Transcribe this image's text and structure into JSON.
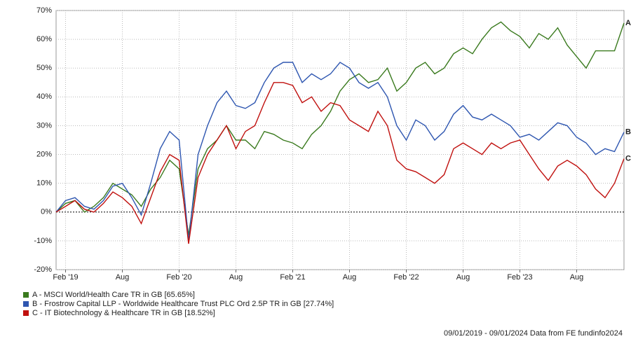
{
  "chart_data": {
    "type": "line",
    "x": [
      "2019-01",
      "2019-02",
      "2019-03",
      "2019-04",
      "2019-05",
      "2019-06",
      "2019-07",
      "2019-08",
      "2019-09",
      "2019-10",
      "2019-11",
      "2019-12",
      "2020-01",
      "2020-02",
      "2020-03",
      "2020-04",
      "2020-05",
      "2020-06",
      "2020-07",
      "2020-08",
      "2020-09",
      "2020-10",
      "2020-11",
      "2020-12",
      "2021-01",
      "2021-02",
      "2021-03",
      "2021-04",
      "2021-05",
      "2021-06",
      "2021-07",
      "2021-08",
      "2021-09",
      "2021-10",
      "2021-11",
      "2021-12",
      "2022-01",
      "2022-02",
      "2022-03",
      "2022-04",
      "2022-05",
      "2022-06",
      "2022-07",
      "2022-08",
      "2022-09",
      "2022-10",
      "2022-11",
      "2022-12",
      "2023-01",
      "2023-02",
      "2023-03",
      "2023-04",
      "2023-05",
      "2023-06",
      "2023-07",
      "2023-08",
      "2023-09",
      "2023-10",
      "2023-11",
      "2023-12",
      "2024-01"
    ],
    "xlim": [
      "2019-01",
      "2024-01"
    ],
    "xticks": [
      {
        "value": "2019-02",
        "label": "Feb '19"
      },
      {
        "value": "2019-08",
        "label": "Aug"
      },
      {
        "value": "2020-02",
        "label": "Feb '20"
      },
      {
        "value": "2020-08",
        "label": "Aug"
      },
      {
        "value": "2021-02",
        "label": "Feb '21"
      },
      {
        "value": "2021-08",
        "label": "Aug"
      },
      {
        "value": "2022-02",
        "label": "Feb '22"
      },
      {
        "value": "2022-08",
        "label": "Aug"
      },
      {
        "value": "2023-02",
        "label": "Feb '23"
      },
      {
        "value": "2023-08",
        "label": "Aug"
      }
    ],
    "ylim": [
      -20,
      70
    ],
    "yticks": [
      {
        "value": -20,
        "label": "-20%"
      },
      {
        "value": -10,
        "label": "-10%"
      },
      {
        "value": 0,
        "label": "0%"
      },
      {
        "value": 10,
        "label": "10%"
      },
      {
        "value": 20,
        "label": "20%"
      },
      {
        "value": 30,
        "label": "30%"
      },
      {
        "value": 40,
        "label": "40%"
      },
      {
        "value": 50,
        "label": "50%"
      },
      {
        "value": 60,
        "label": "60%"
      },
      {
        "value": 70,
        "label": "70%"
      }
    ],
    "grid": true,
    "series": [
      {
        "name": "A - MSCI World/Health Care TR in GB [65.65%]",
        "end_label": "A",
        "color": "#3a7a1e",
        "values": [
          0,
          3,
          4,
          0,
          2,
          5,
          10,
          8,
          6,
          2,
          8,
          12,
          18,
          15,
          -8,
          15,
          22,
          25,
          30,
          25,
          25,
          22,
          28,
          27,
          25,
          24,
          22,
          27,
          30,
          35,
          42,
          46,
          48,
          45,
          46,
          50,
          42,
          45,
          50,
          52,
          48,
          50,
          55,
          57,
          55,
          60,
          64,
          66,
          63,
          61,
          57,
          62,
          60,
          64,
          58,
          54,
          50,
          56,
          56,
          56,
          65.65
        ]
      },
      {
        "name": "B - Frostrow Capital LLP - Worldwide Healthcare Trust PLC Ord 2.5P TR in GB [27.74%]",
        "end_label": "B",
        "color": "#2e56b0",
        "values": [
          0,
          4,
          5,
          2,
          1,
          4,
          9,
          10,
          5,
          -1,
          10,
          22,
          28,
          25,
          -10,
          20,
          30,
          38,
          42,
          37,
          36,
          38,
          45,
          50,
          52,
          52,
          45,
          48,
          46,
          48,
          52,
          50,
          45,
          43,
          45,
          40,
          30,
          25,
          32,
          30,
          25,
          28,
          34,
          37,
          33,
          32,
          34,
          32,
          30,
          26,
          27,
          25,
          28,
          31,
          30,
          26,
          24,
          20,
          22,
          21,
          27.74
        ]
      },
      {
        "name": "C - IT Biotechnology & Healthcare TR in GB [18.52%]",
        "end_label": "C",
        "color": "#c0100e",
        "values": [
          0,
          2,
          4,
          1,
          0,
          3,
          7,
          5,
          2,
          -4,
          5,
          14,
          20,
          18,
          -11,
          12,
          20,
          25,
          30,
          22,
          28,
          30,
          38,
          45,
          45,
          44,
          38,
          40,
          35,
          38,
          37,
          32,
          30,
          28,
          35,
          30,
          18,
          15,
          14,
          12,
          10,
          13,
          22,
          24,
          22,
          20,
          24,
          22,
          24,
          25,
          20,
          15,
          11,
          16,
          18,
          16,
          13,
          8,
          5,
          10,
          18.52
        ]
      }
    ],
    "footer": "09/01/2019 - 09/01/2024 Data from FE fundinfo2024"
  }
}
